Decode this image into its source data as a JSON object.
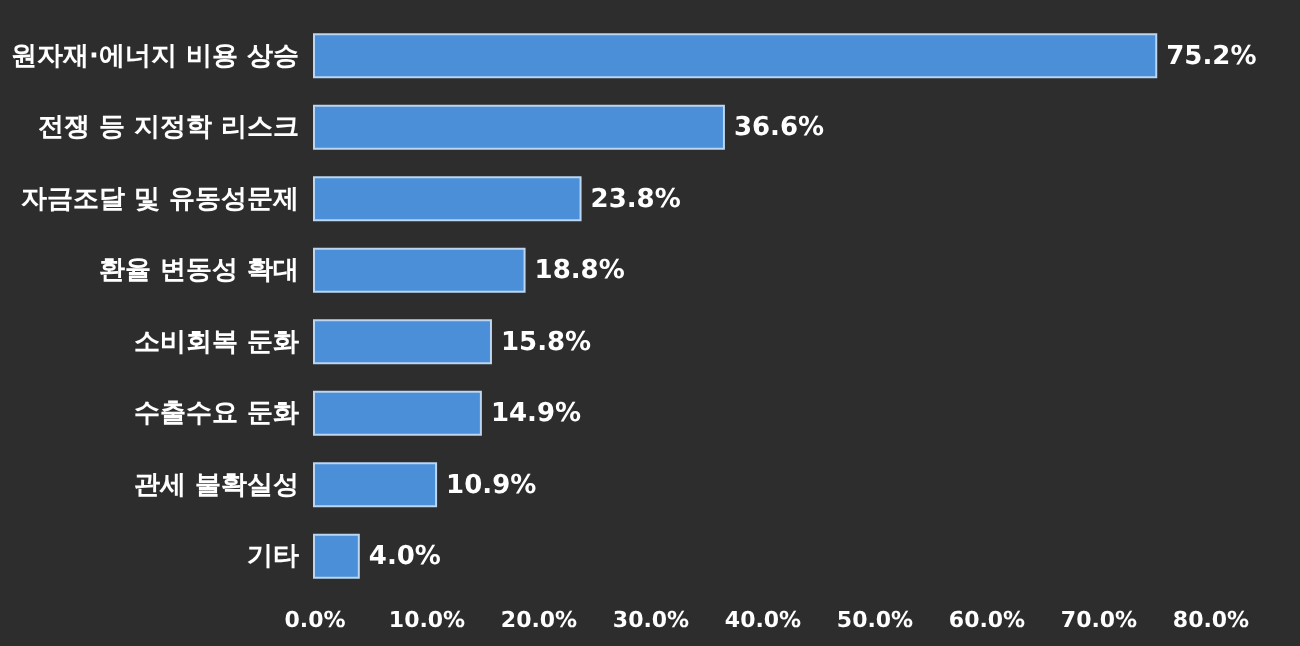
{
  "chart_data": {
    "type": "bar",
    "orientation": "horizontal",
    "categories": [
      "원자재·에너지 비용 상승",
      "전쟁 등 지정학 리스크",
      "자금조달 및 유동성문제",
      "환율 변동성 확대",
      "소비회복 둔화",
      "수출수요 둔화",
      "관세 불확실성",
      "기타"
    ],
    "values": [
      75.2,
      36.6,
      23.8,
      18.8,
      15.8,
      14.9,
      10.9,
      4.0
    ],
    "value_labels": [
      "75.2%",
      "36.6%",
      "23.8%",
      "18.8%",
      "15.8%",
      "14.9%",
      "10.9%",
      "4.0%"
    ],
    "color": "#4a8fd8",
    "xlim": [
      0,
      80
    ],
    "xticks": [
      {
        "value": 0,
        "label": "0.0%"
      },
      {
        "value": 10,
        "label": "10.0%"
      },
      {
        "value": 20,
        "label": "20.0%"
      },
      {
        "value": 30,
        "label": "30.0%"
      },
      {
        "value": 40,
        "label": "40.0%"
      },
      {
        "value": 50,
        "label": "50.0%"
      },
      {
        "value": 60,
        "label": "60.0%"
      },
      {
        "value": 70,
        "label": "70.0%"
      },
      {
        "value": 80,
        "label": "80.0%"
      }
    ],
    "grid": false
  }
}
